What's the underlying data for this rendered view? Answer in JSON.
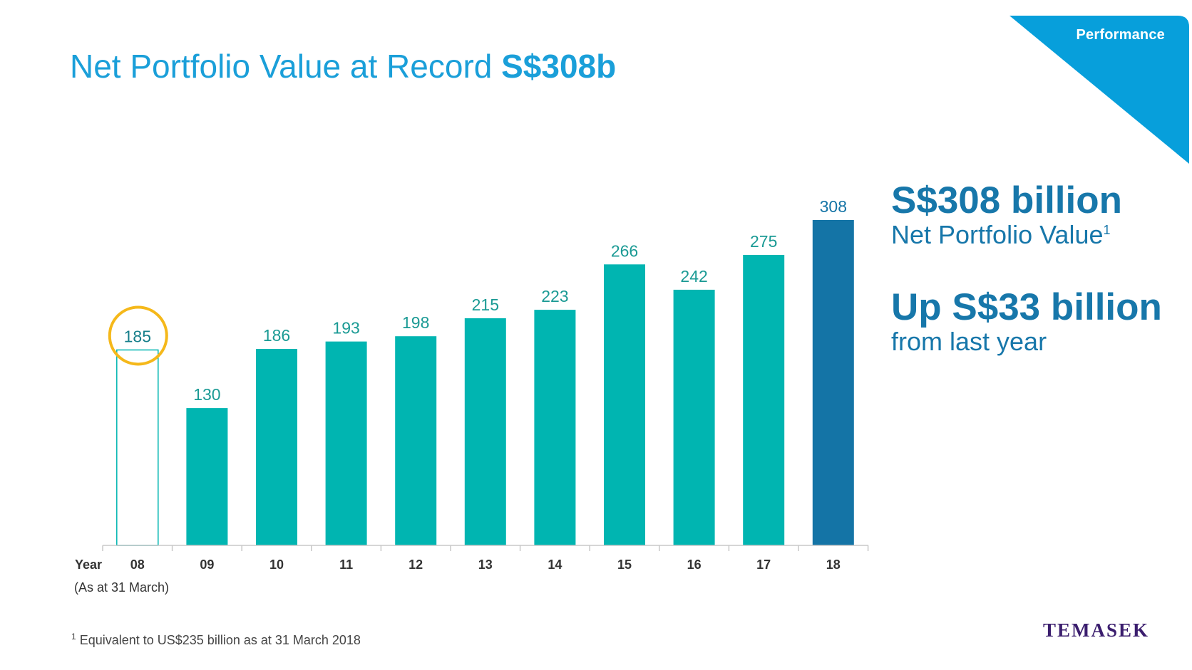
{
  "header": {
    "title_prefix": "Net Portfolio Value at Record ",
    "title_emphasis": "S$308b",
    "section_tab": "Performance"
  },
  "summary": {
    "headline": "S$308 billion",
    "headline_sub": "Net Portfolio Value",
    "headline_sub_note": "1",
    "change": "Up S$33 billion",
    "change_sub": "from last year"
  },
  "notes": {
    "as_at": "(As at 31 March)",
    "footnote_mark": "1",
    "footnote_text": " Equivalent to US$235 billion as at 31 March 2018"
  },
  "brand": {
    "name": "TEMASEK"
  },
  "colors": {
    "accent_blue": "#1a9fd9",
    "bar_teal": "#00b5b1",
    "bar_latest": "#1474a6",
    "highlight_ring": "#f5b81a",
    "brand_purple": "#3b1e6e"
  },
  "chart_data": {
    "type": "bar",
    "xlabel": "Year",
    "categories": [
      "08",
      "09",
      "10",
      "11",
      "12",
      "13",
      "14",
      "15",
      "16",
      "17",
      "18"
    ],
    "values": [
      185,
      130,
      186,
      193,
      198,
      215,
      223,
      266,
      242,
      275,
      308
    ],
    "data_labels": [
      "185",
      "130",
      "186",
      "193",
      "198",
      "215",
      "223",
      "266",
      "242",
      "275",
      "308"
    ],
    "highlighted_category": "08",
    "latest_category": "18",
    "ylim": [
      0,
      308
    ],
    "grid": false,
    "legend": "none"
  }
}
